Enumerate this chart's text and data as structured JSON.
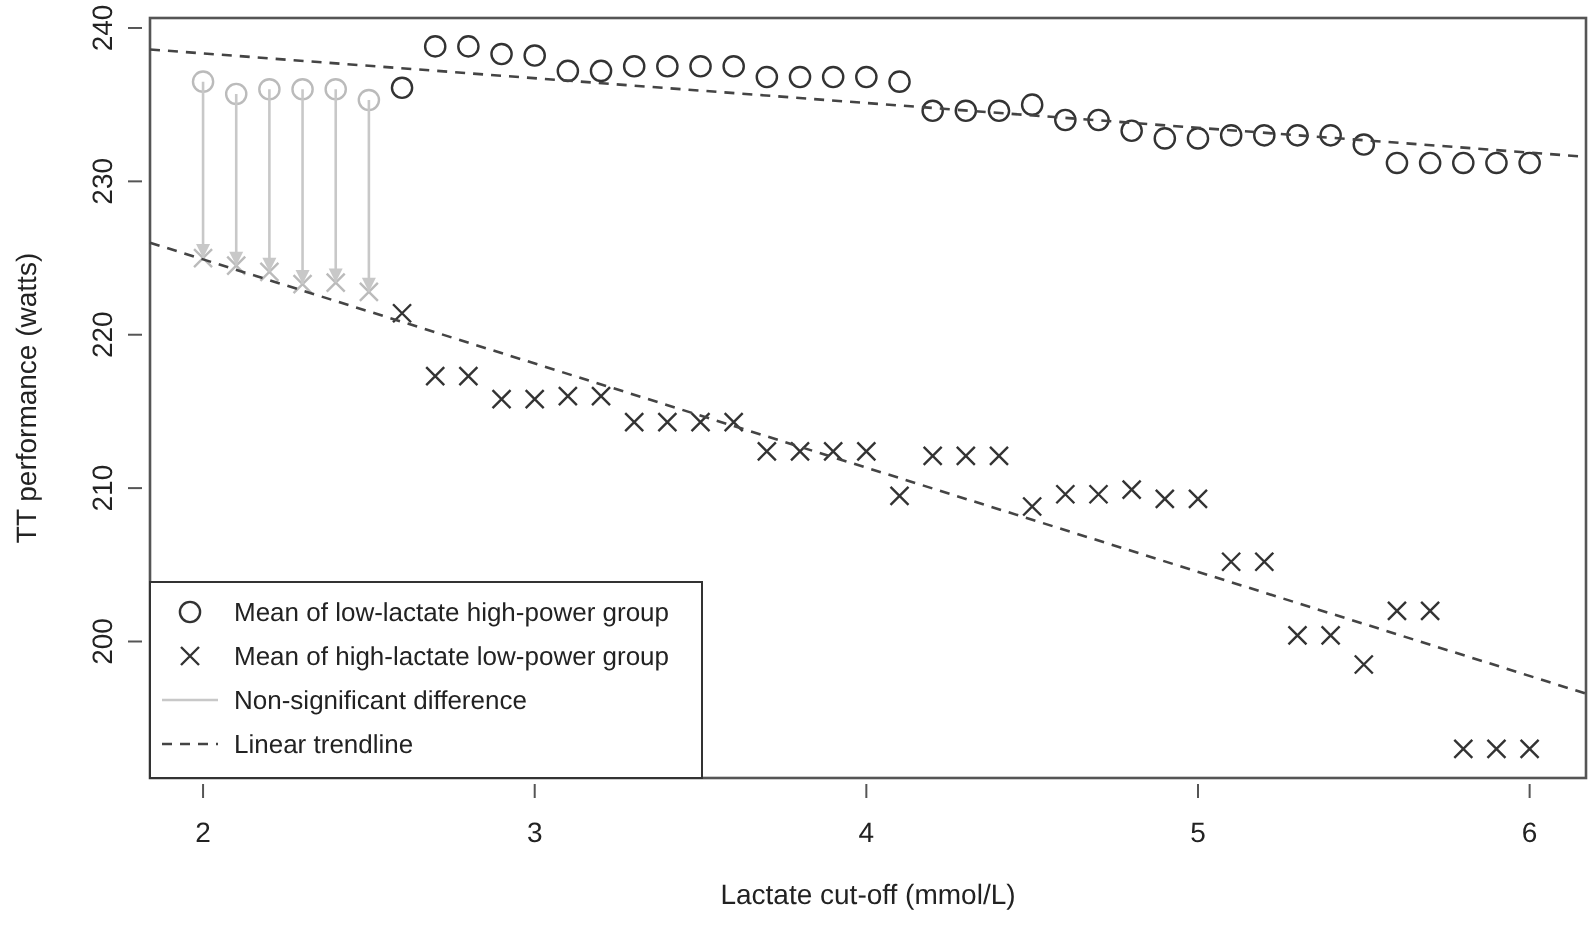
{
  "chart_data": {
    "type": "scatter",
    "xlabel": "Lactate cut-off (mmol/L)",
    "ylabel": "TT performance (watts)",
    "xlim": [
      1.84,
      6.17
    ],
    "ylim": [
      191.1,
      240.65
    ],
    "xticks": [
      2,
      3,
      4,
      5,
      6
    ],
    "yticks": [
      200,
      210,
      220,
      230,
      240
    ],
    "legend": "bottom left",
    "grid": false,
    "x": [
      2,
      2.1,
      2.2,
      2.3,
      2.4,
      2.5,
      2.6,
      2.7,
      2.8,
      2.9,
      3,
      3.1,
      3.2,
      3.3,
      3.4,
      3.5,
      3.6,
      3.7,
      3.8,
      3.9,
      4,
      4.1,
      4.2,
      4.3,
      4.4,
      4.5,
      4.6,
      4.7,
      4.8,
      4.9,
      5,
      5.1,
      5.2,
      5.3,
      5.4,
      5.5,
      5.6,
      5.7,
      5.8,
      5.9,
      6
    ],
    "series": [
      {
        "name": "Mean of low-lactate high-power group",
        "marker": "circle",
        "color": "#333333",
        "colors": [
          "#bbbbbb",
          "#bbbbbb",
          "#bbbbbb",
          "#bbbbbb",
          "#bbbbbb",
          "#bbbbbb",
          "#333333",
          "#333333",
          "#333333",
          "#333333",
          "#333333",
          "#333333",
          "#333333",
          "#333333",
          "#333333",
          "#333333",
          "#333333",
          "#333333",
          "#333333",
          "#333333",
          "#333333",
          "#333333",
          "#333333",
          "#333333",
          "#333333",
          "#333333",
          "#333333",
          "#333333",
          "#333333",
          "#333333",
          "#333333",
          "#333333",
          "#333333",
          "#333333",
          "#333333",
          "#333333",
          "#333333",
          "#333333",
          "#333333",
          "#333333",
          "#333333"
        ],
        "values": [
          236.5,
          235.7,
          236.0,
          236.0,
          236.0,
          235.3,
          236.1,
          238.8,
          238.8,
          238.3,
          238.2,
          237.2,
          237.2,
          237.5,
          237.5,
          237.5,
          237.5,
          236.8,
          236.8,
          236.8,
          236.8,
          236.5,
          234.6,
          234.6,
          234.6,
          235.0,
          234.0,
          234.0,
          233.3,
          232.8,
          232.8,
          233.0,
          233.0,
          233.0,
          233.0,
          232.4,
          231.2,
          231.2,
          231.2,
          231.2,
          231.2
        ]
      },
      {
        "name": "Mean of high-lactate low-power group",
        "marker": "cross",
        "color": "#333333",
        "colors": [
          "#bbbbbb",
          "#bbbbbb",
          "#bbbbbb",
          "#bbbbbb",
          "#bbbbbb",
          "#bbbbbb",
          "#333333",
          "#333333",
          "#333333",
          "#333333",
          "#333333",
          "#333333",
          "#333333",
          "#333333",
          "#333333",
          "#333333",
          "#333333",
          "#333333",
          "#333333",
          "#333333",
          "#333333",
          "#333333",
          "#333333",
          "#333333",
          "#333333",
          "#333333",
          "#333333",
          "#333333",
          "#333333",
          "#333333",
          "#333333",
          "#333333",
          "#333333",
          "#333333",
          "#333333",
          "#333333",
          "#333333",
          "#333333",
          "#333333",
          "#333333",
          "#333333"
        ],
        "values": [
          225.0,
          224.5,
          224.1,
          223.3,
          223.4,
          222.8,
          221.4,
          217.3,
          217.3,
          215.8,
          215.8,
          216.0,
          216.0,
          214.3,
          214.3,
          214.3,
          214.3,
          212.4,
          212.4,
          212.4,
          212.4,
          209.5,
          212.1,
          212.1,
          212.1,
          208.8,
          209.6,
          209.6,
          209.9,
          209.3,
          209.3,
          205.2,
          205.2,
          200.4,
          200.4,
          198.5,
          202.0,
          202.0,
          193.0,
          193.0,
          193.0
        ]
      },
      {
        "name": "Non-significant difference",
        "type": "line",
        "line_style": "solid",
        "color": "#c8c8c8",
        "x": [
          2,
          2,
          null,
          2.1,
          2.1,
          null,
          2.2,
          2.2,
          null,
          2.3,
          2.3,
          null,
          2.4,
          2.4,
          null,
          2.5,
          2.5
        ],
        "values": [
          236.5,
          225.0,
          null,
          235.7,
          224.5,
          null,
          236.0,
          224.1,
          null,
          236.0,
          223.3,
          null,
          236.0,
          223.4,
          null,
          235.3,
          222.8
        ]
      },
      {
        "name": "Linear trendline",
        "type": "line",
        "line_style": "dashed",
        "color": "#444444",
        "x": [
          1.84,
          6.17
        ],
        "values": [
          238.6,
          231.6
        ]
      },
      {
        "type": "line",
        "line_style": "dashed",
        "color": "#444444",
        "x": [
          1.84,
          6.17
        ],
        "values": [
          226.0,
          196.6
        ]
      }
    ]
  }
}
